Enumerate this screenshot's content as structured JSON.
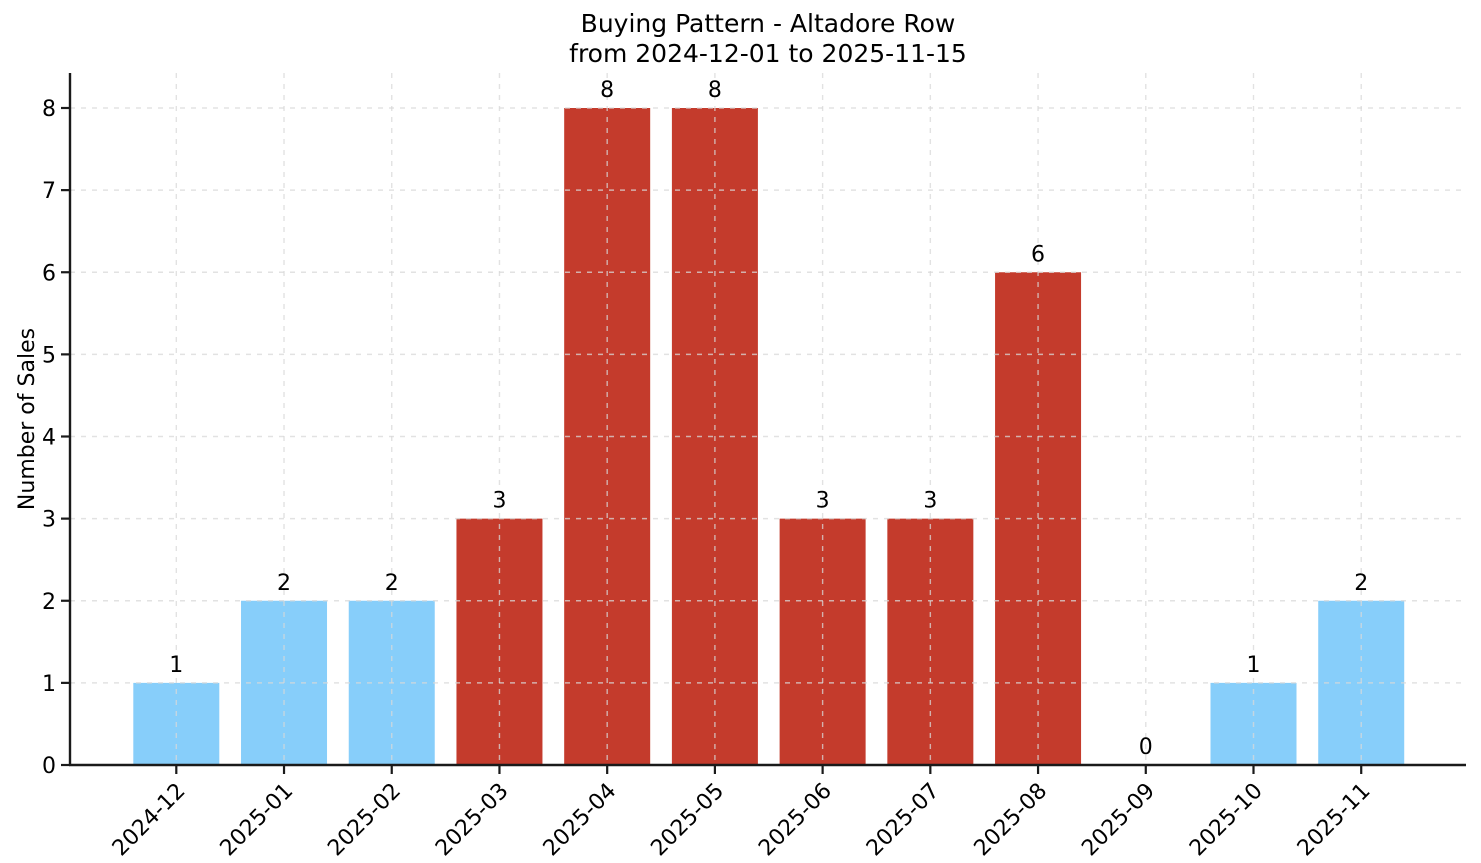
{
  "chart_data": {
    "type": "bar",
    "title": "Buying Pattern - Altadore Row",
    "subtitle": "from 2024-12-01 to 2025-11-15",
    "xlabel": "",
    "ylabel": "Number of Sales",
    "categories": [
      "2024-12",
      "2025-01",
      "2025-02",
      "2025-03",
      "2025-04",
      "2025-05",
      "2025-06",
      "2025-07",
      "2025-08",
      "2025-09",
      "2025-10",
      "2025-11"
    ],
    "values": [
      1,
      2,
      2,
      3,
      8,
      8,
      3,
      3,
      6,
      0,
      1,
      2
    ],
    "value_labels": [
      "1",
      "2",
      "2",
      "3",
      "8",
      "8",
      "3",
      "3",
      "6",
      "0",
      "1",
      "2"
    ],
    "bar_colors": [
      "#87CEFA",
      "#87CEFA",
      "#87CEFA",
      "#C43B2C",
      "#C43B2C",
      "#C43B2C",
      "#C43B2C",
      "#C43B2C",
      "#C43B2C",
      "#87CEFA",
      "#87CEFA",
      "#87CEFA"
    ],
    "yticks": [
      0,
      1,
      2,
      3,
      4,
      5,
      6,
      7,
      8
    ],
    "ylim": [
      0,
      8.45
    ],
    "grid": true,
    "grid_style": "dashed",
    "legend_position": "none",
    "colors": {
      "low_months_bar": "#87CEFA",
      "high_months_bar": "#C43B2C",
      "axis": "#1A1A1A",
      "grid": "#D9D9D9",
      "background": "#FFFFFF"
    }
  }
}
